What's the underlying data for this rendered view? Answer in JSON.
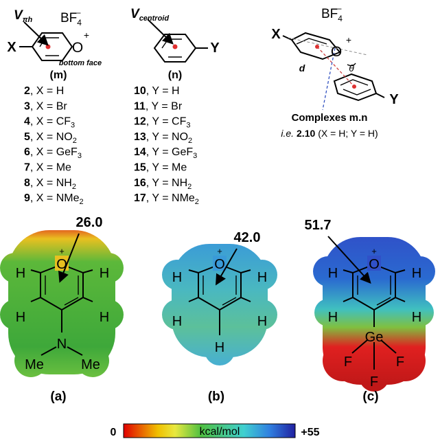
{
  "scheme": {
    "pyrylium": {
      "v_label": "V",
      "v_sub": "πh",
      "counterion": "BF",
      "counterion_sub": "4",
      "counterion_sup": "−",
      "substituent": "X",
      "heteroatom": "O",
      "charge": "+",
      "face": "bottom face",
      "caption": "(m)",
      "items": [
        {
          "id": "2",
          "text": ", X = H"
        },
        {
          "id": "3",
          "text": ", X = Br"
        },
        {
          "id": "4",
          "text": ", X = CF",
          "sub": "3"
        },
        {
          "id": "5",
          "text": ", X = NO",
          "sub": "2"
        },
        {
          "id": "6",
          "text": ", X = GeF",
          "sub": "3"
        },
        {
          "id": "7",
          "text": ", X = Me"
        },
        {
          "id": "8",
          "text": ", X = NH",
          "sub": "2"
        },
        {
          "id": "9",
          "text": ", X = NMe",
          "sub": "2"
        }
      ]
    },
    "arene": {
      "v_label": "V",
      "v_sub": "centroid",
      "substituent": "Y",
      "caption": "(n)",
      "items": [
        {
          "id": "10",
          "text": ", Y = H"
        },
        {
          "id": "11",
          "text": ", Y = Br"
        },
        {
          "id": "12",
          "text": ", Y = CF",
          "sub": "3"
        },
        {
          "id": "13",
          "text": ", Y = NO",
          "sub": "2"
        },
        {
          "id": "14",
          "text": ", Y = GeF",
          "sub": "3"
        },
        {
          "id": "15",
          "text": ", Y = Me"
        },
        {
          "id": "16",
          "text": ", Y = NH",
          "sub": "2"
        },
        {
          "id": "17",
          "text": ", Y = NMe",
          "sub": "2"
        }
      ]
    },
    "complex": {
      "counterion": "BF",
      "counterion_sub": "4",
      "counterion_sup": "−",
      "x": "X",
      "heteroatom": "O",
      "charge": "+",
      "distance": "d",
      "angle": "θ",
      "y": "Y",
      "title": "Complexes m.n",
      "example_prefix": "i.e.",
      "example_id": "2.10",
      "example_rest": "(X = H; Y = H)"
    }
  },
  "maps": [
    {
      "value": "26.0",
      "caption": "(a)",
      "heteroatom": "O",
      "charge": "+",
      "atoms": [
        "H",
        "H",
        "H",
        "H",
        "N",
        "Me",
        "Me"
      ]
    },
    {
      "value": "42.0",
      "caption": "(b)",
      "heteroatom": "O",
      "charge": "+",
      "atoms": [
        "H",
        "H",
        "H",
        "H",
        "H"
      ]
    },
    {
      "value": "51.7",
      "caption": "(c)",
      "heteroatom": "O",
      "charge": "+",
      "atoms": [
        "H",
        "H",
        "H",
        "H",
        "Ge",
        "F",
        "F",
        "F"
      ]
    }
  ],
  "colorbar": {
    "min": "0",
    "label": "kcal/mol",
    "max": "+55"
  }
}
